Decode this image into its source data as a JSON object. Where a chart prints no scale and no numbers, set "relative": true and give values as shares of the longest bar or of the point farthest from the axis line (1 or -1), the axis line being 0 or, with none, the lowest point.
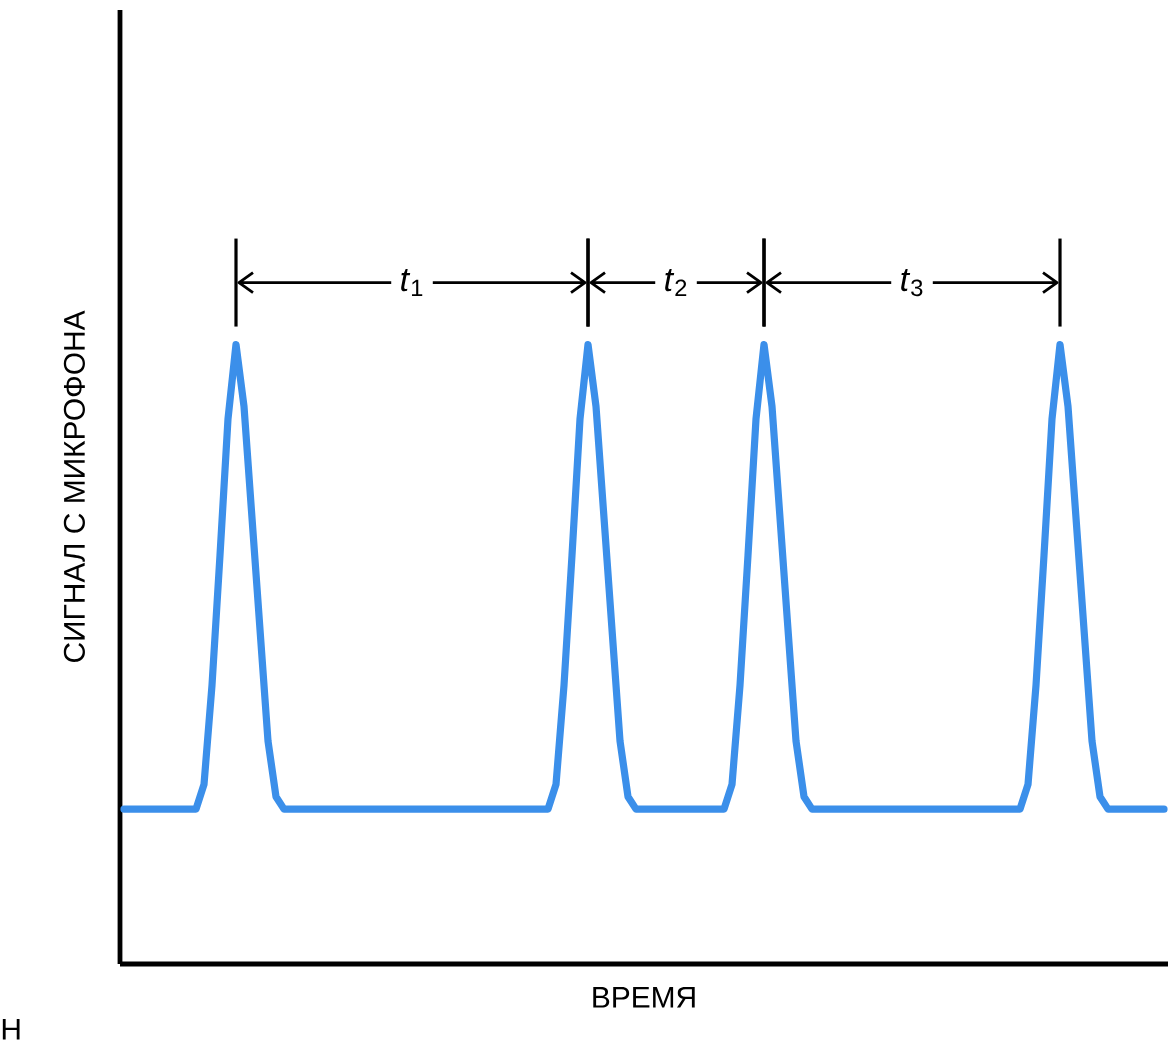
{
  "chart_data": {
    "type": "line",
    "relative": true,
    "marker": "none",
    "line_style": "solid",
    "xlabel": "ВРЕМЯ",
    "ylabel": "СИГНАЛ С МИКРОФОНА",
    "annotations": [
      "*t*$_{1}$",
      "*t*$_{2}$",
      "*t*$_{3}$",
      "Н"
    ],
    "categories": [
      null,
      null,
      null,
      null,
      null,
      null,
      null,
      null,
      null,
      null,
      null,
      null,
      null,
      null,
      null,
      null,
      null,
      null,
      null,
      null,
      null,
      null,
      null,
      null,
      null,
      null,
      null,
      null,
      null,
      null,
      null,
      null,
      null,
      null,
      null,
      null,
      null,
      null,
      null,
      null,
      null,
      null,
      null,
      null,
      null,
      null,
      null,
      null,
      null,
      null,
      null,
      null,
      null,
      null,
      null,
      null,
      null,
      null,
      null,
      null,
      null,
      null,
      null,
      null,
      null,
      null,
      null,
      null,
      null,
      null,
      null,
      null,
      null,
      null,
      null,
      null,
      null,
      null,
      null,
      null,
      null,
      null,
      null,
      null,
      null,
      null,
      null,
      null,
      null,
      null,
      null,
      null,
      null,
      null,
      null,
      null,
      null,
      null,
      null,
      null,
      null,
      null,
      null,
      null,
      null,
      null,
      null,
      null,
      null,
      null,
      null,
      null,
      null,
      null,
      null,
      null,
      null,
      null,
      null,
      null,
      null,
      null,
      null,
      null,
      null,
      null,
      null,
      null,
      null,
      null,
      null
    ],
    "series": [
      {
        "color": "#3b8fea",
        "values": [
          0.25,
          0.25,
          0.25,
          0.25,
          0.25,
          0.25,
          0.25,
          0.25,
          0.25,
          0.25,
          0.29,
          0.45,
          0.66,
          0.88,
          1,
          0.9,
          0.72,
          0.54,
          0.36,
          0.27,
          0.25,
          0.25,
          0.25,
          0.25,
          0.25,
          0.25,
          0.25,
          0.25,
          0.25,
          0.25,
          0.25,
          0.25,
          0.25,
          0.25,
          0.25,
          0.25,
          0.25,
          0.25,
          0.25,
          0.25,
          0.25,
          0.25,
          0.25,
          0.25,
          0.25,
          0.25,
          0.25,
          0.25,
          0.25,
          0.25,
          0.25,
          0.25,
          0.25,
          0.25,
          0.29,
          0.45,
          0.66,
          0.88,
          1,
          0.9,
          0.72,
          0.54,
          0.36,
          0.27,
          0.25,
          0.25,
          0.25,
          0.25,
          0.25,
          0.25,
          0.25,
          0.25,
          0.25,
          0.25,
          0.25,
          0.25,
          0.29,
          0.45,
          0.66,
          0.88,
          1,
          0.9,
          0.72,
          0.54,
          0.36,
          0.27,
          0.25,
          0.25,
          0.25,
          0.25,
          0.25,
          0.25,
          0.25,
          0.25,
          0.25,
          0.25,
          0.25,
          0.25,
          0.25,
          0.25,
          0.25,
          0.25,
          0.25,
          0.25,
          0.25,
          0.25,
          0.25,
          0.25,
          0.25,
          0.25,
          0.25,
          0.25,
          0.25,
          0.29,
          0.45,
          0.66,
          0.88,
          1,
          0.9,
          0.72,
          0.54,
          0.36,
          0.27,
          0.25,
          0.25,
          0.25,
          0.25,
          0.25,
          0.25,
          0.25,
          0.25
        ]
      }
    ]
  }
}
